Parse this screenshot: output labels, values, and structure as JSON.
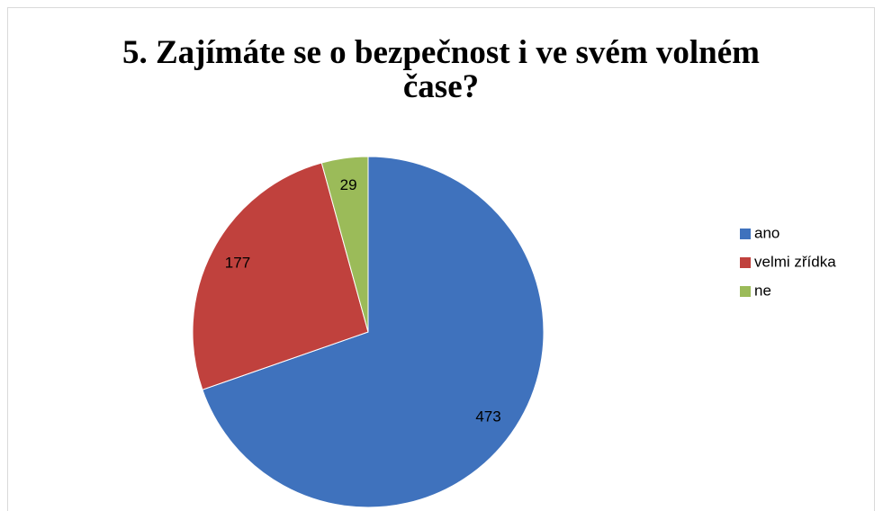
{
  "chart_data": {
    "type": "pie",
    "title": "5. Zajímáte se o bezpečnost i ve svém volném čase?",
    "categories": [
      "ano",
      "velmi zřídka",
      "ne"
    ],
    "values": [
      473,
      177,
      29
    ],
    "colors": [
      "#3f72bd",
      "#c0413d",
      "#9bbb59"
    ],
    "legend": "right"
  }
}
